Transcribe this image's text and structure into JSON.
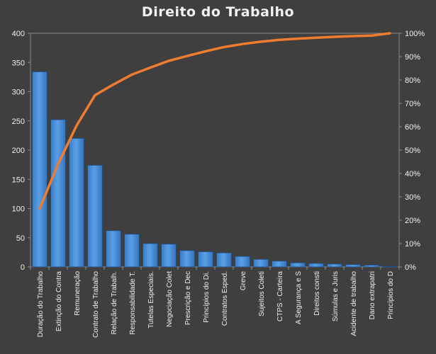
{
  "chart_data": {
    "type": "bar",
    "title": "Direito  do Trabalho",
    "xlabel": "",
    "ylabel": "",
    "ylim": [
      0,
      400
    ],
    "y2lim": [
      0,
      100
    ],
    "yticks": [
      "0",
      "50",
      "100",
      "150",
      "200",
      "250",
      "300",
      "350",
      "400"
    ],
    "y2ticks": [
      "0%",
      "10%",
      "20%",
      "30%",
      "40%",
      "50%",
      "60%",
      "70%",
      "80%",
      "90%",
      "100%"
    ],
    "grid": false,
    "categories": [
      "Duração do Trabalho",
      "Extinção do Contra",
      "Remuneração",
      "Contrato de Trabalho",
      "Relação de Trabalh.",
      "Responsabilidade T.",
      "Tutelas Especiais.",
      "Negociação Colet",
      "Prescrição e Dec",
      "Princípios do Di.",
      "Contratos Esped.",
      "Greve",
      "Sujeitos Coleti",
      "CTPS - Carteira",
      "A Segurança e S",
      "Direitos consti",
      "Súmulas e Juris",
      "Acidente de trabalho",
      "Dano extrapatri",
      "Princípios do D"
    ],
    "series": [
      {
        "type": "bar",
        "color": "#4a8fd8",
        "values": [
          334,
          252,
          220,
          174,
          62,
          56,
          40,
          39,
          28,
          26,
          24,
          18,
          13,
          10,
          7,
          6,
          5,
          4,
          3,
          1
        ]
      },
      {
        "type": "line",
        "axis": "secondary",
        "color": "#ee7d31",
        "values": [
          25.0,
          44.0,
          60.5,
          73.5,
          78.1,
          82.3,
          85.3,
          88.2,
          90.3,
          92.3,
          94.1,
          95.4,
          96.4,
          97.2,
          97.7,
          98.1,
          98.5,
          98.8,
          99.0,
          100.0
        ]
      }
    ]
  }
}
